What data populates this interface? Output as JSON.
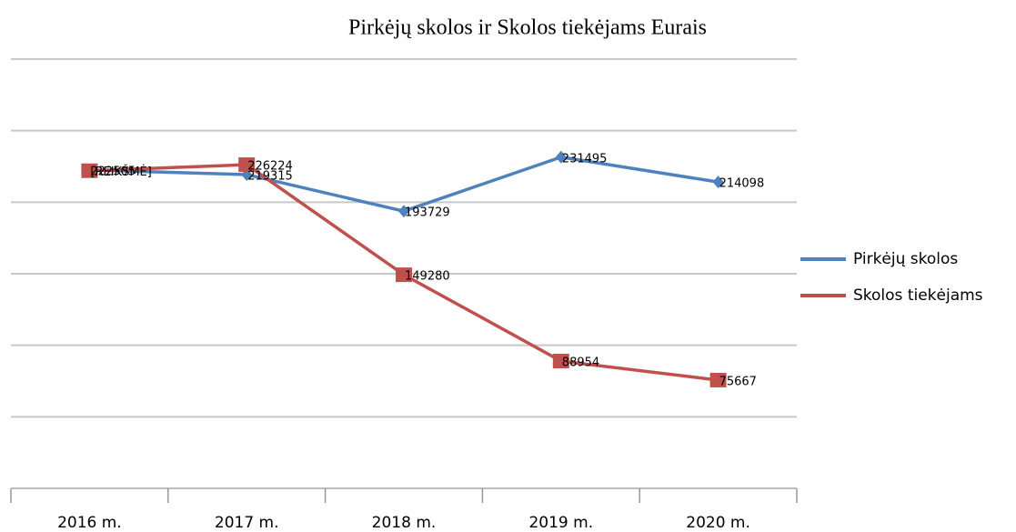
{
  "chart_data": {
    "type": "line",
    "title": "Pirkėjų skolos ir Skolos tiekėjams Eurais",
    "categories": [
      "2016 m.",
      "2017 m.",
      "2018 m.",
      "2019 m.",
      "2020 m."
    ],
    "series": [
      {
        "name": "Pirkėjų skolos",
        "color": "#4f81bd",
        "marker": "diamond",
        "values": [
          222505,
          219315,
          193729,
          231495,
          214098
        ]
      },
      {
        "name": "Skolos tiekėjams",
        "color": "#c0504d",
        "marker": "square",
        "values": [
          222000,
          226224,
          149280,
          88954,
          75667
        ],
        "value_labels": [
          "[REIKŠMĖ]",
          null,
          null,
          null,
          null
        ]
      }
    ],
    "ylim": [
      0,
      300000
    ],
    "yticks": [
      0,
      50000,
      100000,
      150000,
      200000,
      250000,
      300000
    ],
    "grid": true,
    "legend": "right"
  }
}
